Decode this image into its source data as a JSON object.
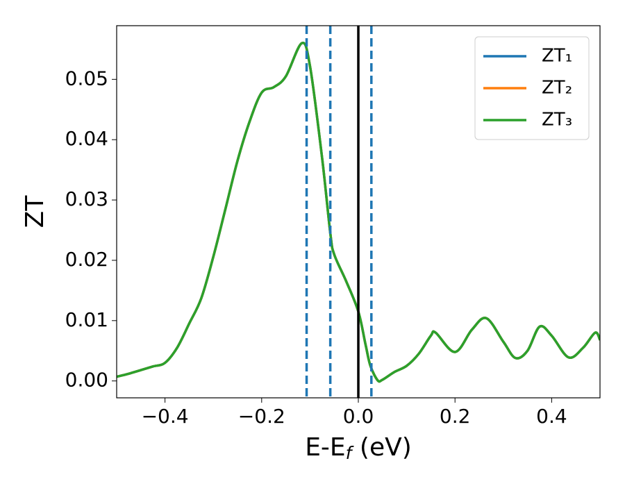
{
  "chart_data": {
    "type": "line",
    "xlabel": {
      "main": "E-E",
      "sub": "f",
      "rest": " (eV)"
    },
    "ylabel": "ZT",
    "x": [
      -0.5,
      -0.475,
      -0.45,
      -0.425,
      -0.4,
      -0.375,
      -0.35,
      -0.325,
      -0.3,
      -0.275,
      -0.25,
      -0.225,
      -0.2,
      -0.175,
      -0.15,
      -0.117,
      -0.1,
      -0.075,
      -0.058,
      -0.05,
      -0.025,
      0,
      0.015,
      0.025,
      0.04,
      0.05,
      0.075,
      0.1,
      0.125,
      0.15,
      0.16,
      0.2,
      0.235,
      0.265,
      0.3,
      0.325,
      0.35,
      0.375,
      0.4,
      0.435,
      0.465,
      0.49,
      0.5
    ],
    "series": [
      {
        "name": "ZT₁",
        "color": "#1f77b4",
        "values": [
          0.0007,
          0.0012,
          0.0018,
          0.0024,
          0.003,
          0.0055,
          0.0095,
          0.0137,
          0.0206,
          0.0285,
          0.0365,
          0.043,
          0.0478,
          0.0487,
          0.0505,
          0.056,
          0.0522,
          0.037,
          0.0245,
          0.021,
          0.0165,
          0.0115,
          0.006,
          0.0025,
          0.0001,
          0.0002,
          0.0015,
          0.0025,
          0.0045,
          0.0075,
          0.008,
          0.0048,
          0.0085,
          0.0104,
          0.0065,
          0.0038,
          0.005,
          0.009,
          0.0075,
          0.0039,
          0.0055,
          0.008,
          0.0068
        ]
      },
      {
        "name": "ZT₂",
        "color": "#ff7f0e",
        "values": [
          0.0007,
          0.0012,
          0.0018,
          0.0024,
          0.003,
          0.0055,
          0.0095,
          0.0137,
          0.0206,
          0.0285,
          0.0365,
          0.043,
          0.0478,
          0.0487,
          0.0505,
          0.056,
          0.0522,
          0.037,
          0.0245,
          0.021,
          0.0165,
          0.0115,
          0.006,
          0.0025,
          0.0001,
          0.0002,
          0.0015,
          0.0025,
          0.0045,
          0.0075,
          0.008,
          0.0048,
          0.0085,
          0.0104,
          0.0065,
          0.0038,
          0.005,
          0.009,
          0.0075,
          0.0039,
          0.0055,
          0.008,
          0.0068
        ]
      },
      {
        "name": "ZT₃",
        "color": "#2ca02c",
        "values": [
          0.0007,
          0.0012,
          0.0018,
          0.0024,
          0.003,
          0.0055,
          0.0095,
          0.0137,
          0.0206,
          0.0285,
          0.0365,
          0.043,
          0.0478,
          0.0487,
          0.0505,
          0.056,
          0.0522,
          0.037,
          0.0245,
          0.021,
          0.0165,
          0.0115,
          0.006,
          0.0025,
          0.0001,
          0.0002,
          0.0015,
          0.0025,
          0.0045,
          0.0075,
          0.008,
          0.0048,
          0.0085,
          0.0104,
          0.0065,
          0.0038,
          0.005,
          0.009,
          0.0075,
          0.0039,
          0.0055,
          0.008,
          0.0068
        ]
      }
    ],
    "vlines": [
      {
        "x": -0.107,
        "style": "dashed",
        "color": "#1f77b4"
      },
      {
        "x": -0.058,
        "style": "dashed",
        "color": "#1f77b4"
      },
      {
        "x": 0,
        "style": "solid",
        "color": "#000000"
      },
      {
        "x": 0.027,
        "style": "dashed",
        "color": "#1f77b4"
      }
    ],
    "xlim": [
      -0.5,
      0.5
    ],
    "ylim": [
      -0.0028,
      0.0589
    ],
    "xticks": [
      {
        "value": -0.4,
        "label": "−0.4"
      },
      {
        "value": -0.2,
        "label": "−0.2"
      },
      {
        "value": 0,
        "label": "0.0"
      },
      0.2,
      0.4
    ],
    "yticks": [
      {
        "value": 0,
        "label": "0.00"
      },
      {
        "value": 0.01,
        "label": "0.01"
      },
      {
        "value": 0.02,
        "label": "0.02"
      },
      {
        "value": 0.03,
        "label": "0.03"
      },
      {
        "value": 0.04,
        "label": "0.04"
      },
      {
        "value": 0.05,
        "label": "0.05"
      }
    ],
    "grid": false,
    "legend": "upper right"
  }
}
